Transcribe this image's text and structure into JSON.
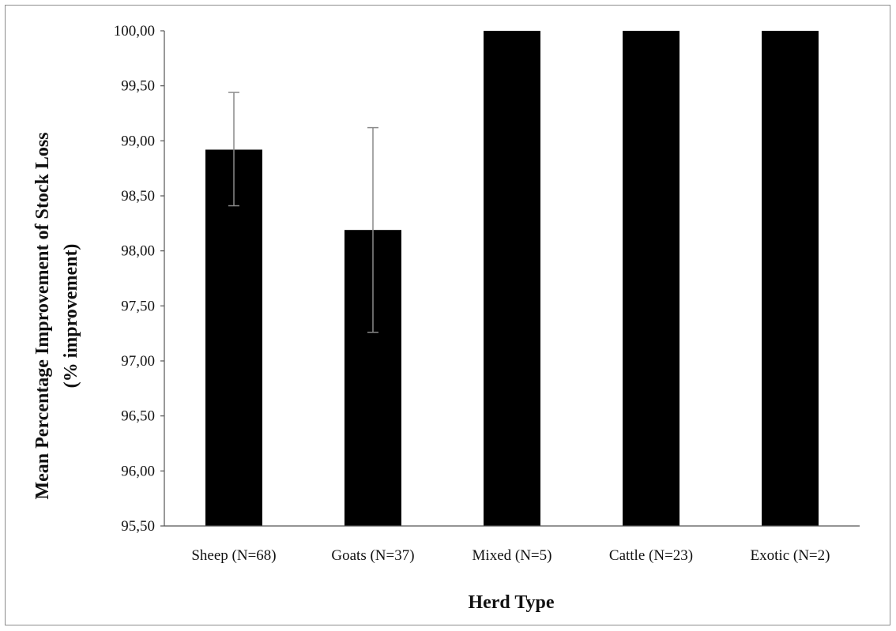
{
  "chart_data": {
    "type": "bar",
    "categories": [
      "Sheep (N=68)",
      "Goats (N=37)",
      "Mixed (N=5)",
      "Cattle (N=23)",
      "Exotic (N=2)"
    ],
    "values": [
      98.92,
      98.19,
      100.0,
      100.0,
      100.0
    ],
    "error_low": [
      98.41,
      97.26,
      100.0,
      100.0,
      100.0
    ],
    "error_high": [
      99.44,
      99.12,
      100.0,
      100.0,
      100.0
    ],
    "xlabel": "Herd Type",
    "ylabel_line1": "Mean Percentage Improvement of Stock Loss",
    "ylabel_line2": "(% improvement)",
    "ylim": [
      95.5,
      100.0
    ],
    "yticks": [
      "95,50",
      "96,00",
      "96,50",
      "97,00",
      "97,50",
      "98,00",
      "98,50",
      "99,00",
      "99,50",
      "100,00"
    ],
    "grid": false,
    "bar_color": "#000000",
    "error_color": "#8a8a8a"
  }
}
